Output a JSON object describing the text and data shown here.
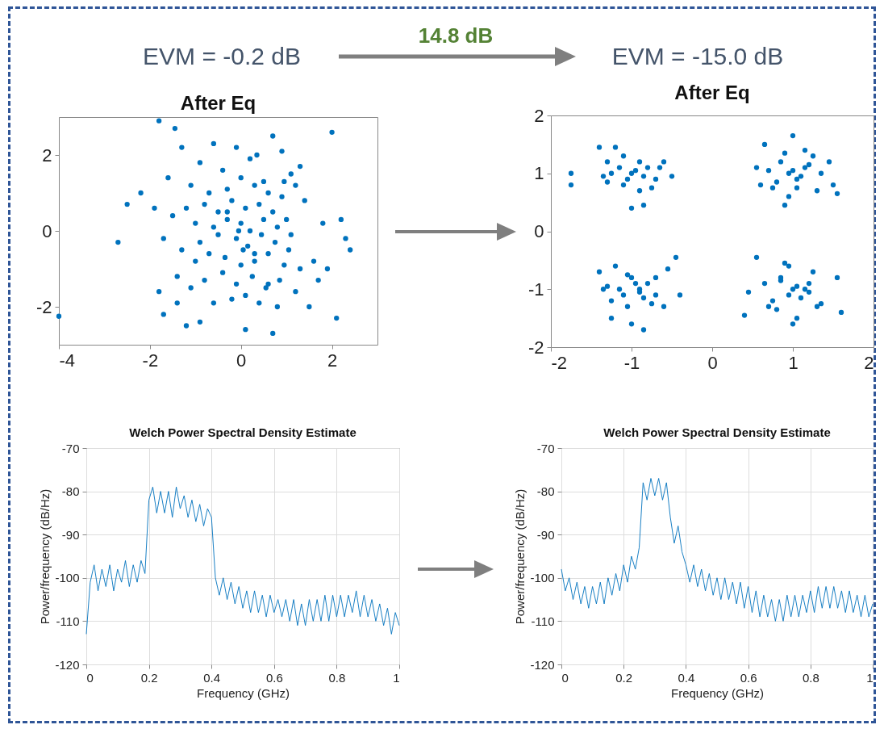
{
  "chart_data": [
    {
      "type": "scatter",
      "title": "After Eq",
      "annotations": [
        "EVM = -0.2 dB",
        "14.8 dB"
      ],
      "marker": "circle",
      "color": "#0072bd",
      "xlim": [
        -4,
        3
      ],
      "ylim": [
        -3,
        3
      ],
      "xticks": [
        -4,
        -2,
        0,
        2
      ],
      "yticks": [
        -2,
        0,
        2
      ],
      "grid": false,
      "x": [
        -4,
        -2.7,
        -1.8,
        -1.45,
        2,
        0.7,
        2.1,
        0.1,
        0.7,
        -1.2,
        -1.7,
        2.4,
        2.3,
        2.2,
        -2.2,
        -2.5,
        -1.3,
        -0.6,
        -0.1,
        0.35,
        0.9,
        1.3,
        -1.6,
        -1.9,
        -1.4,
        1.7,
        1.9,
        1.5,
        -0.9,
        -0.4,
        0.2,
        0.5,
        1.1,
        -1.1,
        -0.7,
        -0.3,
        0.0,
        0.3,
        0.6,
        0.9,
        1.2,
        -1.5,
        -1.2,
        -0.8,
        -0.5,
        -0.2,
        0.1,
        0.4,
        0.7,
        1.0,
        1.4,
        -1.7,
        -1.0,
        -0.6,
        -0.3,
        0.0,
        0.2,
        0.5,
        0.8,
        1.1,
        -1.3,
        -0.9,
        -0.5,
        -0.1,
        0.15,
        0.45,
        0.75,
        1.05,
        1.6,
        -1.4,
        -1.0,
        -0.7,
        -0.35,
        0.05,
        0.3,
        0.6,
        0.95,
        1.3,
        -1.1,
        -0.8,
        -0.4,
        -0.1,
        0.25,
        0.55,
        0.85,
        1.2,
        -0.6,
        -0.2,
        0.1,
        0.4,
        0.8,
        -0.9,
        0.0,
        0.6,
        -0.3,
        0.3,
        1.8,
        -1.8,
        0.95,
        -0.05
      ],
      "values": [
        -2.25,
        -0.3,
        2.9,
        2.7,
        2.6,
        2.5,
        -2.3,
        -2.6,
        -2.7,
        -2.5,
        -2.2,
        -0.5,
        -0.2,
        0.3,
        1.0,
        0.7,
        2.2,
        2.3,
        2.2,
        2.0,
        2.1,
        1.7,
        1.4,
        0.6,
        -1.9,
        -1.3,
        -1.0,
        -2.0,
        1.8,
        1.6,
        1.9,
        1.3,
        1.5,
        1.2,
        1.0,
        1.1,
        1.4,
        1.2,
        1.0,
        0.9,
        1.2,
        0.4,
        0.6,
        0.7,
        0.5,
        0.8,
        0.6,
        0.7,
        0.5,
        0.3,
        0.8,
        -0.2,
        0.2,
        0.1,
        0.3,
        0.2,
        0.0,
        0.3,
        0.1,
        -0.1,
        -0.5,
        -0.3,
        -0.1,
        -0.2,
        -0.4,
        -0.1,
        -0.3,
        -0.5,
        -0.8,
        -1.2,
        -0.8,
        -0.6,
        -0.7,
        -0.5,
        -0.8,
        -0.6,
        -0.9,
        -1.0,
        -1.5,
        -1.3,
        -1.1,
        -1.4,
        -1.2,
        -1.5,
        -1.3,
        -1.6,
        -1.9,
        -1.8,
        -1.7,
        -1.9,
        -2.0,
        -2.4,
        -0.9,
        -1.4,
        0.5,
        -0.6,
        0.2,
        -1.6,
        1.3,
        0.0
      ]
    },
    {
      "type": "scatter",
      "title": "After Eq",
      "annotations": [
        "EVM = -15.0 dB"
      ],
      "marker": "circle",
      "color": "#0072bd",
      "xlim": [
        -2,
        2
      ],
      "ylim": [
        -2,
        2
      ],
      "xticks": [
        -2,
        -1,
        0,
        1,
        2
      ],
      "yticks": [
        -2,
        -1,
        0,
        1,
        2
      ],
      "grid": false,
      "x": [
        -1.75,
        -1.75,
        -1.4,
        -1.3,
        -1.35,
        -1.2,
        -1.1,
        -1.0,
        -0.9,
        -0.8,
        -0.7,
        -0.6,
        -0.5,
        -1.25,
        -1.15,
        -1.05,
        -0.95,
        -0.85,
        -0.75,
        -1.0,
        -0.85,
        -1.3,
        -0.65,
        -1.1,
        -0.9,
        -1.4,
        -1.3,
        -1.2,
        -1.1,
        -1.0,
        -0.9,
        -0.8,
        -0.7,
        -0.55,
        -0.45,
        -0.4,
        -1.25,
        -1.15,
        -1.05,
        -0.95,
        -0.85,
        -0.75,
        -1.0,
        -0.85,
        -1.35,
        -1.25,
        -0.7,
        -0.9,
        -1.05,
        -0.6,
        1.0,
        0.65,
        0.55,
        0.75,
        0.85,
        0.95,
        1.05,
        1.15,
        1.25,
        1.35,
        1.5,
        1.55,
        0.7,
        0.8,
        0.9,
        1.0,
        1.1,
        1.2,
        1.3,
        0.9,
        0.6,
        0.95,
        1.15,
        1.45,
        1.05,
        0.4,
        0.45,
        0.55,
        0.65,
        0.75,
        0.85,
        0.95,
        1.05,
        1.15,
        1.25,
        1.35,
        1.55,
        1.6,
        0.8,
        0.9,
        1.0,
        1.1,
        1.2,
        0.7,
        1.0,
        1.3,
        0.95,
        1.2,
        0.85,
        1.05
      ],
      "values": [
        1.0,
        0.8,
        1.45,
        1.2,
        0.95,
        1.45,
        0.8,
        1.0,
        1.2,
        1.1,
        0.9,
        1.2,
        0.95,
        1.0,
        1.1,
        0.9,
        1.05,
        0.95,
        0.75,
        0.4,
        0.45,
        0.85,
        1.1,
        1.3,
        0.7,
        -0.7,
        -0.95,
        -0.6,
        -1.1,
        -0.8,
        -1.0,
        -0.9,
        -1.1,
        -0.65,
        -0.45,
        -1.1,
        -1.2,
        -1.0,
        -1.3,
        -0.9,
        -1.15,
        -1.25,
        -1.6,
        -1.7,
        -1.0,
        -1.5,
        -0.8,
        -1.05,
        -0.75,
        -1.3,
        1.65,
        1.5,
        1.1,
        0.75,
        1.2,
        1.0,
        0.9,
        1.1,
        1.3,
        1.0,
        0.8,
        0.65,
        1.05,
        0.85,
        1.35,
        1.05,
        0.95,
        1.15,
        0.7,
        0.45,
        0.8,
        0.6,
        1.4,
        1.2,
        0.75,
        -1.45,
        -1.05,
        -0.45,
        -0.9,
        -1.2,
        -0.8,
        -1.1,
        -0.95,
        -1.0,
        -0.7,
        -1.25,
        -0.8,
        -1.4,
        -1.35,
        -0.55,
        -1.6,
        -1.15,
        -0.9,
        -1.3,
        -1.0,
        -1.3,
        -0.6,
        -1.05,
        -0.85,
        -1.5
      ]
    },
    {
      "type": "line",
      "title": "Welch Power Spectral Density Estimate",
      "xlabel": "Frequency (GHz)",
      "ylabel": "Power/frequency (dB/Hz)",
      "color": "#0072bd",
      "xlim": [
        0,
        1
      ],
      "ylim": [
        -120,
        -70
      ],
      "xticks": [
        0,
        0.2,
        0.4,
        0.6,
        0.8,
        1
      ],
      "yticks": [
        -120,
        -110,
        -100,
        -90,
        -80,
        -70
      ],
      "grid": true,
      "x": [
        0,
        0.0125,
        0.025,
        0.0375,
        0.05,
        0.0625,
        0.075,
        0.0875,
        0.1,
        0.1125,
        0.125,
        0.1375,
        0.15,
        0.1625,
        0.175,
        0.1875,
        0.2,
        0.2125,
        0.225,
        0.2375,
        0.25,
        0.2625,
        0.275,
        0.2875,
        0.3,
        0.3125,
        0.325,
        0.3375,
        0.35,
        0.3625,
        0.375,
        0.3875,
        0.4,
        0.4125,
        0.425,
        0.4375,
        0.45,
        0.4625,
        0.475,
        0.4875,
        0.5,
        0.5125,
        0.525,
        0.5375,
        0.55,
        0.5625,
        0.575,
        0.5875,
        0.6,
        0.6125,
        0.625,
        0.6375,
        0.65,
        0.6625,
        0.675,
        0.6875,
        0.7,
        0.7125,
        0.725,
        0.7375,
        0.75,
        0.7625,
        0.775,
        0.7875,
        0.8,
        0.8125,
        0.825,
        0.8375,
        0.85,
        0.8625,
        0.875,
        0.8875,
        0.9,
        0.9125,
        0.925,
        0.9375,
        0.95,
        0.9625,
        0.975,
        0.9875,
        1
      ],
      "values": [
        -113,
        -101,
        -97,
        -103,
        -98,
        -102,
        -97,
        -103,
        -98,
        -101,
        -96,
        -102,
        -97,
        -101,
        -96,
        -99,
        -82,
        -79,
        -85,
        -80,
        -85,
        -80,
        -86,
        -79,
        -84,
        -81,
        -86,
        -82,
        -87,
        -83,
        -88,
        -84,
        -86,
        -100,
        -104,
        -100,
        -105,
        -101,
        -106,
        -102,
        -107,
        -103,
        -108,
        -103,
        -108,
        -104,
        -109,
        -104,
        -108,
        -105,
        -109,
        -105,
        -110,
        -105,
        -111,
        -106,
        -111,
        -105,
        -110,
        -105,
        -110,
        -104,
        -110,
        -104,
        -109,
        -104,
        -109,
        -104,
        -108,
        -103,
        -109,
        -104,
        -109,
        -105,
        -110,
        -106,
        -111,
        -107,
        -113,
        -108,
        -111
      ]
    },
    {
      "type": "line",
      "title": "Welch Power Spectral Density Estimate",
      "xlabel": "Frequency (GHz)",
      "ylabel": "Power/frequency (dB/Hz)",
      "color": "#0072bd",
      "xlim": [
        0,
        1
      ],
      "ylim": [
        -120,
        -70
      ],
      "xticks": [
        0,
        0.2,
        0.4,
        0.6,
        0.8,
        1
      ],
      "yticks": [
        -120,
        -110,
        -100,
        -90,
        -80,
        -70
      ],
      "grid": true,
      "x": [
        0,
        0.0125,
        0.025,
        0.0375,
        0.05,
        0.0625,
        0.075,
        0.0875,
        0.1,
        0.1125,
        0.125,
        0.1375,
        0.15,
        0.1625,
        0.175,
        0.1875,
        0.2,
        0.2125,
        0.225,
        0.2375,
        0.25,
        0.2625,
        0.275,
        0.2875,
        0.3,
        0.3125,
        0.325,
        0.3375,
        0.35,
        0.3625,
        0.375,
        0.3875,
        0.4,
        0.4125,
        0.425,
        0.4375,
        0.45,
        0.4625,
        0.475,
        0.4875,
        0.5,
        0.5125,
        0.525,
        0.5375,
        0.55,
        0.5625,
        0.575,
        0.5875,
        0.6,
        0.6125,
        0.625,
        0.6375,
        0.65,
        0.6625,
        0.675,
        0.6875,
        0.7,
        0.7125,
        0.725,
        0.7375,
        0.75,
        0.7625,
        0.775,
        0.7875,
        0.8,
        0.8125,
        0.825,
        0.8375,
        0.85,
        0.8625,
        0.875,
        0.8875,
        0.9,
        0.9125,
        0.925,
        0.9375,
        0.95,
        0.9625,
        0.975,
        0.9875,
        1
      ],
      "values": [
        -98,
        -103,
        -100,
        -105,
        -101,
        -106,
        -102,
        -107,
        -102,
        -106,
        -101,
        -106,
        -100,
        -104,
        -99,
        -103,
        -97,
        -101,
        -95,
        -98,
        -93,
        -78,
        -82,
        -77,
        -81,
        -77,
        -82,
        -78,
        -86,
        -92,
        -88,
        -94,
        -97,
        -101,
        -97,
        -102,
        -98,
        -103,
        -99,
        -104,
        -100,
        -105,
        -100,
        -105,
        -101,
        -106,
        -101,
        -107,
        -102,
        -108,
        -103,
        -109,
        -104,
        -109,
        -105,
        -110,
        -105,
        -110,
        -104,
        -109,
        -104,
        -109,
        -104,
        -108,
        -103,
        -108,
        -102,
        -107,
        -102,
        -107,
        -102,
        -107,
        -103,
        -108,
        -103,
        -108,
        -104,
        -109,
        -104,
        -109,
        -106
      ]
    }
  ]
}
